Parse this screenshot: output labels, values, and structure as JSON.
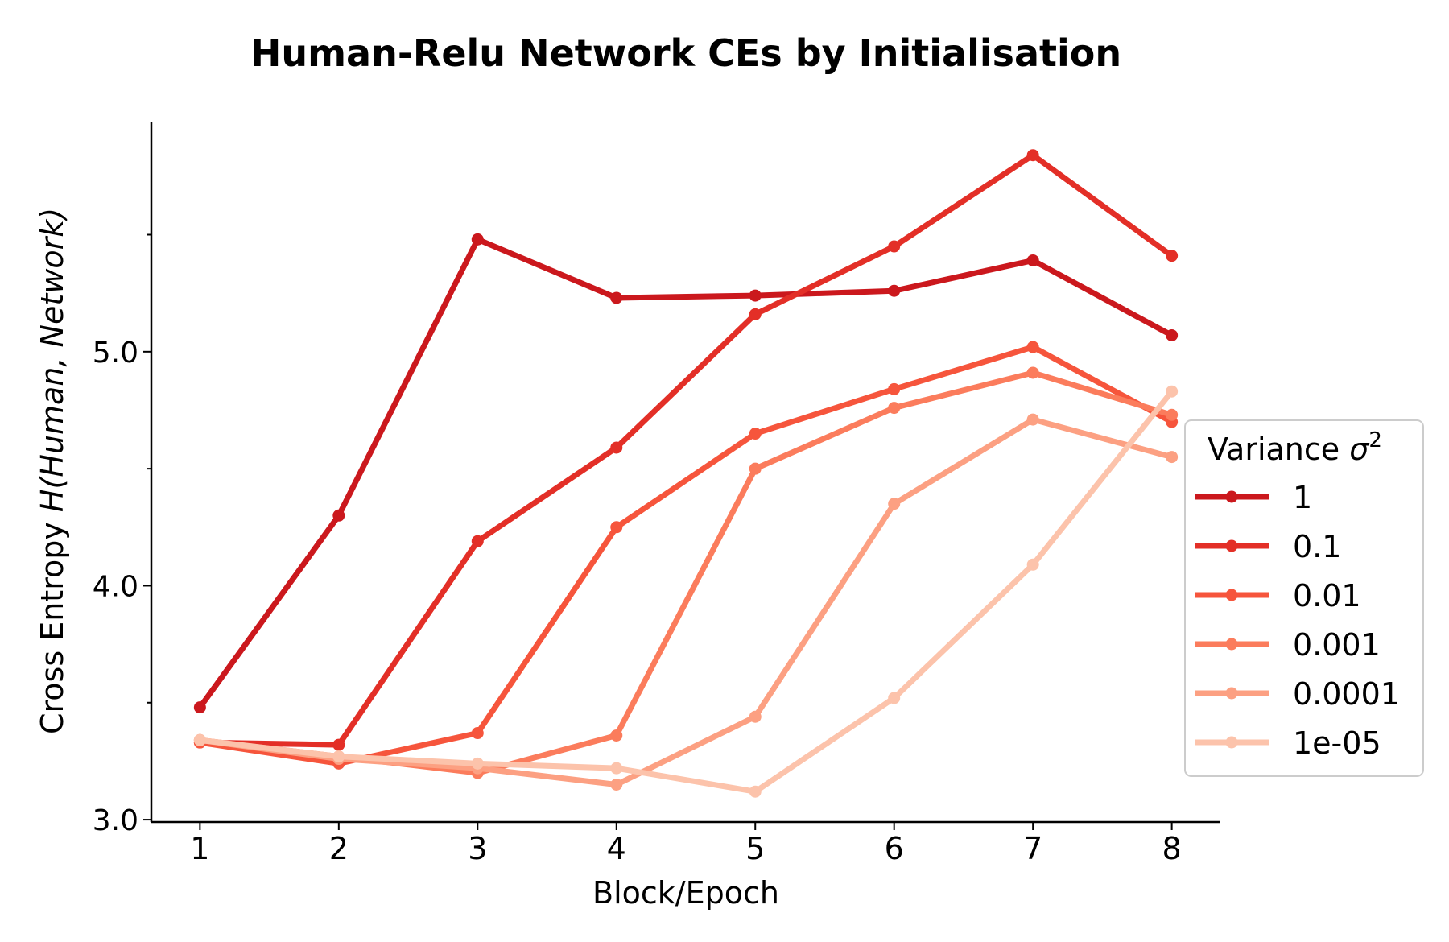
{
  "chart_data": {
    "type": "line",
    "title": "Human-Relu Network CEs by Initialisation",
    "xlabel": "Block/Epoch",
    "ylabel_prefix": "Cross Entropy ",
    "ylabel_math": "H(Human, Network)",
    "x": [
      1,
      2,
      3,
      4,
      5,
      6,
      7,
      8
    ],
    "xtick_labels": [
      "1",
      "2",
      "3",
      "4",
      "5",
      "6",
      "7",
      "8"
    ],
    "ytick_labels": [
      "3.0",
      "4.0",
      "5.0"
    ],
    "ytick_values": [
      3.0,
      4.0,
      5.0
    ],
    "yminor_values": [
      3.5,
      4.5,
      5.5
    ],
    "xlim": [
      0.65,
      8.35
    ],
    "ylim": [
      2.99,
      5.98
    ],
    "grid": false,
    "legend": {
      "title_text": "Variance ",
      "title_symbol": "σ",
      "title_exp": "2",
      "placement": "center-right"
    },
    "series": [
      {
        "name": "1",
        "color": "#cb181d",
        "values": [
          3.48,
          4.3,
          5.48,
          5.23,
          5.24,
          5.26,
          5.39,
          5.07
        ]
      },
      {
        "name": "0.1",
        "color": "#e32f27",
        "values": [
          3.33,
          3.32,
          4.19,
          4.59,
          5.16,
          5.45,
          5.84,
          5.41
        ]
      },
      {
        "name": "0.01",
        "color": "#f6553c",
        "values": [
          3.33,
          3.24,
          3.37,
          4.25,
          4.65,
          4.84,
          5.02,
          4.7
        ]
      },
      {
        "name": "0.001",
        "color": "#fb7c5c",
        "values": [
          3.34,
          3.27,
          3.2,
          3.36,
          4.5,
          4.76,
          4.91,
          4.73
        ]
      },
      {
        "name": "0.0001",
        "color": "#fca082",
        "values": [
          3.34,
          3.26,
          3.22,
          3.15,
          3.44,
          4.35,
          4.71,
          4.55
        ]
      },
      {
        "name": "1e-05",
        "color": "#fcc3ab",
        "values": [
          3.34,
          3.27,
          3.24,
          3.22,
          3.12,
          3.52,
          4.09,
          4.83
        ]
      }
    ]
  }
}
